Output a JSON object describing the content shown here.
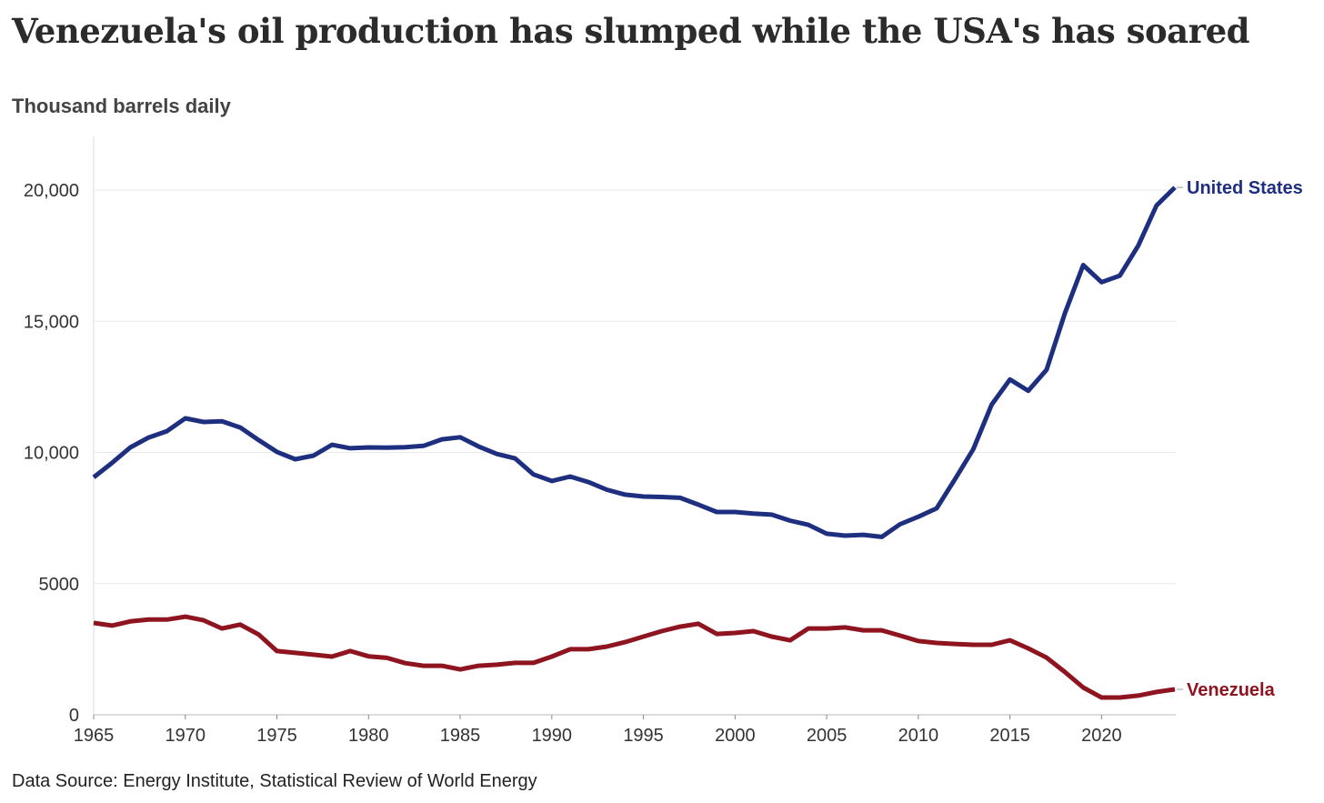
{
  "chart_data": {
    "type": "line",
    "title": "Venezuela's oil production has slumped while the USA's has soared",
    "ylabel": "Thousand barrels daily",
    "xlabel": "",
    "source": "Data Source: Energy Institute, Statistical Review of World Energy",
    "xlim": [
      1965,
      2024
    ],
    "ylim": [
      0,
      22000
    ],
    "x_ticks": [
      1965,
      1970,
      1975,
      1980,
      1985,
      1990,
      1995,
      2000,
      2005,
      2010,
      2015,
      2020
    ],
    "x_tick_labels": [
      "1965",
      "1970",
      "1975",
      "1980",
      "1985",
      "1990",
      "1995",
      "2000",
      "2005",
      "2010",
      "2015",
      "2020"
    ],
    "y_ticks": [
      0,
      5000,
      10000,
      15000,
      20000
    ],
    "y_tick_labels": [
      "0",
      "5000",
      "10,000",
      "15,000",
      "20,000"
    ],
    "grid": "horizontal",
    "legend": "direct labels at line ends (right)",
    "x": [
      1965,
      1966,
      1967,
      1968,
      1969,
      1970,
      1971,
      1972,
      1973,
      1974,
      1975,
      1976,
      1977,
      1978,
      1979,
      1980,
      1981,
      1982,
      1983,
      1984,
      1985,
      1986,
      1987,
      1988,
      1989,
      1990,
      1991,
      1992,
      1993,
      1994,
      1995,
      1996,
      1997,
      1998,
      1999,
      2000,
      2001,
      2002,
      2003,
      2004,
      2005,
      2006,
      2007,
      2008,
      2009,
      2010,
      2011,
      2012,
      2013,
      2014,
      2015,
      2016,
      2017,
      2018,
      2019,
      2020,
      2021,
      2022,
      2023,
      2024
    ],
    "series": [
      {
        "name": "United States",
        "color": "#1f2f80",
        "values": [
          9050,
          9600,
          10190,
          10570,
          10810,
          11300,
          11160,
          11190,
          10950,
          10470,
          10020,
          9740,
          9880,
          10290,
          10160,
          10190,
          10180,
          10200,
          10250,
          10500,
          10580,
          10230,
          9940,
          9770,
          9160,
          8910,
          9080,
          8870,
          8580,
          8390,
          8320,
          8300,
          8270,
          8010,
          7730,
          7730,
          7670,
          7630,
          7400,
          7240,
          6900,
          6830,
          6860,
          6780,
          7260,
          7550,
          7870,
          8980,
          10120,
          11820,
          12780,
          12350,
          13150,
          15310,
          17140,
          16490,
          16740,
          17880,
          19410,
          20100
        ]
      },
      {
        "name": "Venezuela",
        "color": "#8e1420",
        "values": [
          3500,
          3400,
          3560,
          3630,
          3630,
          3740,
          3600,
          3290,
          3440,
          3060,
          2430,
          2360,
          2290,
          2220,
          2430,
          2230,
          2170,
          1970,
          1870,
          1870,
          1730,
          1870,
          1910,
          1980,
          1980,
          2220,
          2500,
          2500,
          2600,
          2770,
          2980,
          3190,
          3360,
          3470,
          3080,
          3120,
          3190,
          2980,
          2840,
          3290,
          3290,
          3330,
          3220,
          3220,
          3020,
          2810,
          2740,
          2700,
          2670,
          2670,
          2840,
          2530,
          2180,
          1630,
          1040,
          660,
          660,
          730,
          870,
          970
        ]
      }
    ]
  }
}
